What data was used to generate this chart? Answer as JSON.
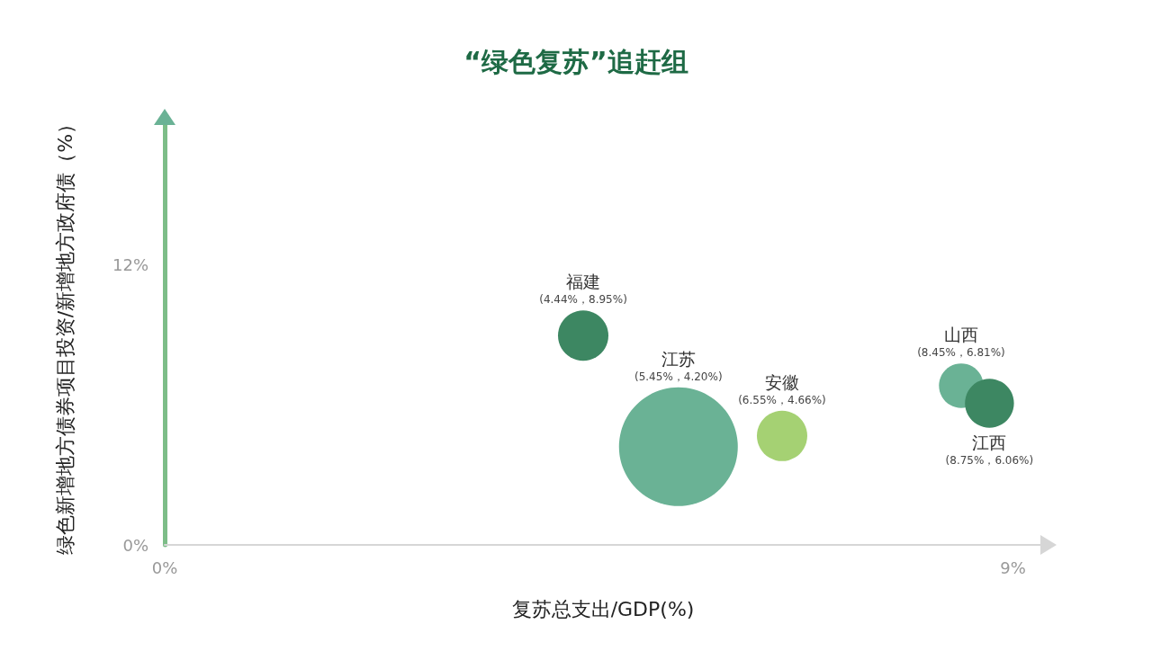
{
  "chart_data": {
    "type": "bubble",
    "title": "“绿色复苏”追赶组",
    "xlabel": "复苏总支出/GDP(%)",
    "ylabel": "绿色新增地方债券项目投资/新增地方政府债（%）",
    "xlim": [
      0,
      9.3
    ],
    "xticks": [
      {
        "value": 0,
        "label": "0%"
      },
      {
        "value": 9,
        "label": "9%"
      }
    ],
    "ylim": [
      0,
      18
    ],
    "yticks": [
      {
        "value": 0,
        "label": "0%"
      },
      {
        "value": 12,
        "label": "12%"
      }
    ],
    "grid": false,
    "legend": false,
    "series": [
      {
        "name": "福建",
        "color": "#3d8762",
        "x": [
          4.44
        ],
        "values": [
          8.95
        ],
        "sizes": [
          0.18
        ],
        "value_labels": [
          "(4.44%，8.95%)"
        ]
      },
      {
        "name": "江苏",
        "color": "#6ab295",
        "x": [
          5.45
        ],
        "values": [
          4.2
        ],
        "sizes": [
          1
        ],
        "value_labels": [
          "(5.45%，4.20%)"
        ]
      },
      {
        "name": "安徽",
        "color": "#a5d173",
        "x": [
          6.55
        ],
        "values": [
          4.66
        ],
        "sizes": [
          0.18
        ],
        "value_labels": [
          "(6.55%，4.66%)"
        ]
      },
      {
        "name": "山西",
        "color": "#6ab295",
        "x": [
          8.45
        ],
        "values": [
          6.81
        ],
        "sizes": [
          0.14
        ],
        "value_labels": [
          "(8.45%，6.81%)"
        ]
      },
      {
        "name": "江西",
        "color": "#3d8762",
        "x": [
          8.75
        ],
        "values": [
          6.06
        ],
        "sizes": [
          0.17
        ],
        "value_labels": [
          "(8.75%，6.06%)"
        ]
      }
    ]
  }
}
